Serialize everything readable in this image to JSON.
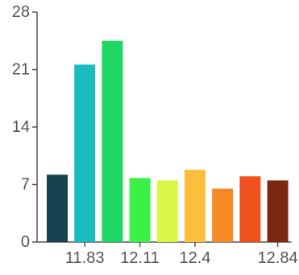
{
  "chart_data": {
    "type": "bar",
    "title": "",
    "xlabel": "",
    "ylabel": "",
    "ylim": [
      0,
      28
    ],
    "y_ticks": [
      "0",
      "7",
      "14",
      "21",
      "28"
    ],
    "x_tick_labels": [
      {
        "label": "11.83",
        "bar_index": 1
      },
      {
        "label": "12.11",
        "bar_index": 3
      },
      {
        "label": "12.4",
        "bar_index": 5
      },
      {
        "label": "12.84",
        "bar_index": 8
      }
    ],
    "values": [
      8.2,
      21.6,
      24.5,
      7.8,
      7.5,
      8.8,
      6.5,
      8.0,
      7.5
    ],
    "colors": [
      "#17414f",
      "#1bbcc0",
      "#1fd864",
      "#3bf047",
      "#d9f545",
      "#fbbf3b",
      "#f68826",
      "#f0511d",
      "#7a2910"
    ],
    "grid": false,
    "legend": "none"
  }
}
